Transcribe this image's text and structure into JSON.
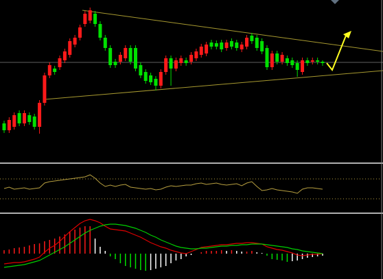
{
  "chart_data": [
    {
      "type": "candlestick",
      "up_color": "#ff1a1a",
      "down_color": "#00e000",
      "ylim": [
        3,
        240
      ],
      "open": [
        60,
        50,
        55,
        75,
        60,
        72,
        70,
        55,
        90,
        130,
        140,
        142,
        152,
        160,
        175,
        185,
        205,
        210,
        220,
        205,
        185,
        170,
        150,
        150,
        155,
        170,
        170,
        145,
        135,
        130,
        125,
        115,
        135,
        155,
        140,
        148,
        152,
        150,
        155,
        160,
        162,
        178,
        177,
        178,
        170,
        180,
        178,
        168,
        172,
        188,
        185,
        180,
        170,
        142,
        162,
        150,
        155,
        152,
        148,
        135,
        152,
        150,
        152,
        150
      ],
      "close": [
        50,
        65,
        72,
        60,
        75,
        62,
        55,
        90,
        130,
        145,
        135,
        155,
        165,
        180,
        185,
        200,
        220,
        225,
        205,
        185,
        170,
        145,
        145,
        160,
        170,
        150,
        140,
        130,
        122,
        120,
        115,
        135,
        155,
        140,
        152,
        155,
        148,
        160,
        165,
        172,
        175,
        172,
        172,
        168,
        178,
        172,
        170,
        175,
        185,
        180,
        170,
        165,
        142,
        162,
        150,
        160,
        148,
        145,
        138,
        152,
        148,
        152,
        150,
        148
      ],
      "high": [
        64,
        69,
        76,
        79,
        79,
        76,
        74,
        94,
        134,
        149,
        144,
        159,
        169,
        184,
        189,
        204,
        224,
        229,
        224,
        209,
        189,
        174,
        154,
        164,
        174,
        174,
        174,
        149,
        139,
        134,
        129,
        139,
        159,
        159,
        156,
        159,
        156,
        164,
        169,
        176,
        179,
        182,
        181,
        182,
        182,
        184,
        182,
        179,
        189,
        192,
        189,
        184,
        174,
        166,
        166,
        164,
        159,
        156,
        152,
        156,
        156,
        156,
        156,
        152
      ],
      "low": [
        46,
        46,
        51,
        56,
        56,
        58,
        51,
        45,
        86,
        126,
        131,
        138,
        148,
        156,
        171,
        181,
        201,
        206,
        201,
        181,
        166,
        141,
        141,
        146,
        151,
        146,
        136,
        126,
        118,
        116,
        108,
        111,
        131,
        115,
        136,
        144,
        144,
        146,
        151,
        156,
        158,
        168,
        168,
        164,
        166,
        168,
        166,
        164,
        168,
        176,
        166,
        161,
        138,
        138,
        146,
        146,
        144,
        141,
        128,
        131,
        144,
        146,
        146,
        144
      ]
    },
    {
      "type": "line",
      "color": "#b8a040",
      "ylim": [
        -10,
        61
      ],
      "levels": [
        39,
        10
      ],
      "level_color": "#b8a040",
      "values": [
        25,
        27,
        24,
        25,
        26,
        24,
        25,
        26,
        33,
        35,
        36,
        37,
        38,
        39,
        40,
        41,
        42,
        45,
        40,
        33,
        28,
        30,
        28,
        30,
        31,
        27,
        26,
        25,
        24,
        25,
        23,
        24,
        27,
        29,
        28,
        29,
        30,
        30,
        32,
        33,
        31,
        32,
        33,
        31,
        30,
        31,
        32,
        29,
        33,
        35,
        28,
        22,
        23,
        25,
        23,
        22,
        21,
        20,
        18,
        24,
        26,
        26,
        25,
        24
      ]
    },
    {
      "type": "macd",
      "ylim": [
        -37,
        58
      ],
      "up_color": "#ff1a1a",
      "fade_color": "#ffffff",
      "down_color": "#00e000",
      "lines": [
        {
          "color": "#e00000",
          "values": [
            -15,
            -14,
            -13,
            -13,
            -12,
            -10,
            -8,
            -5,
            2,
            8,
            12,
            18,
            25,
            32,
            38,
            44,
            48,
            50,
            48,
            45,
            40,
            36,
            35,
            34,
            33,
            30,
            27,
            24,
            20,
            16,
            13,
            10,
            8,
            5,
            3,
            1,
            0,
            3,
            6,
            9,
            10,
            11,
            12,
            13,
            13,
            14,
            15,
            15,
            16,
            16,
            15,
            14,
            10,
            8,
            6,
            5,
            3,
            1,
            -2,
            -3,
            -2,
            -1,
            -1,
            0
          ]
        },
        {
          "color": "#00d000",
          "values": [
            -20,
            -19,
            -18,
            -17,
            -16,
            -14,
            -12,
            -10,
            -6,
            -2,
            2,
            6,
            10,
            15,
            20,
            25,
            30,
            34,
            37,
            40,
            42,
            43,
            43,
            42,
            41,
            39,
            37,
            34,
            31,
            27,
            24,
            20,
            17,
            14,
            11,
            9,
            8,
            7,
            7,
            8,
            8,
            9,
            10,
            11,
            11,
            12,
            12,
            13,
            13,
            14,
            14,
            14,
            13,
            12,
            11,
            10,
            9,
            7,
            6,
            4,
            3,
            2,
            1,
            0
          ]
        }
      ],
      "histogram": [
        5,
        6,
        8,
        9,
        10,
        12,
        14,
        15,
        18,
        20,
        22,
        25,
        28,
        32,
        35,
        38,
        40,
        40,
        22,
        10,
        4,
        -4,
        -8,
        -14,
        -18,
        -20,
        -22,
        -24,
        -25,
        -24,
        -22,
        -20,
        -18,
        -14,
        -10,
        -8,
        -4,
        -2,
        0,
        2,
        4,
        4,
        4,
        5,
        4,
        5,
        4,
        3,
        3,
        4,
        2,
        1,
        -3,
        -8,
        -9,
        -10,
        -12,
        -11,
        -10,
        -8,
        -6,
        -5,
        -4,
        -3
      ]
    }
  ]
}
